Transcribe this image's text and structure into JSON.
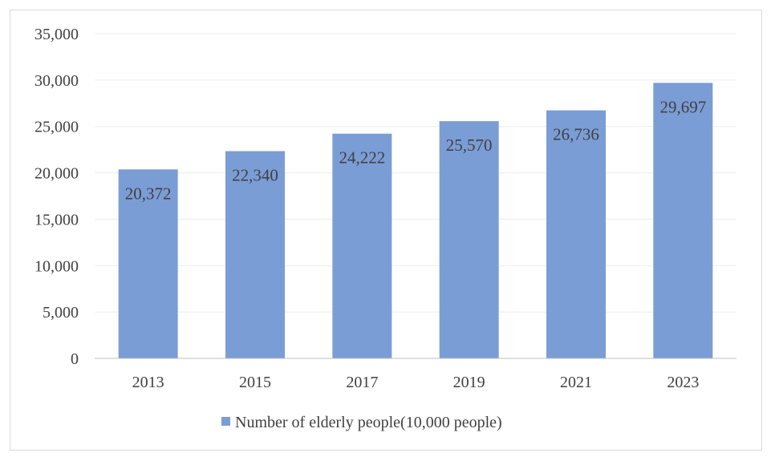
{
  "chart_data": {
    "type": "bar",
    "title": "",
    "xlabel": "",
    "ylabel": "",
    "categories": [
      "2013",
      "2015",
      "2017",
      "2019",
      "2021",
      "2023"
    ],
    "series": [
      {
        "name": "Number of elderly people(10,000 people)",
        "values": [
          20372,
          22340,
          24222,
          25570,
          26736,
          29697
        ],
        "labels": [
          "20,372",
          "22,340",
          "24,222",
          "25,570",
          "26,736",
          "29,697"
        ],
        "color": "#7b9dd6"
      }
    ],
    "ylim": [
      0,
      35000
    ],
    "yticks": [
      0,
      5000,
      10000,
      15000,
      20000,
      25000,
      30000,
      35000
    ],
    "ytick_labels": [
      "0",
      "5,000",
      "10,000",
      "15,000",
      "20,000",
      "25,000",
      "30,000",
      "35,000"
    ],
    "grid": true,
    "legend": "bottom-center",
    "gridline_color": "#ececec",
    "axis_color": "#bfbfbf",
    "text_color": "#404040"
  }
}
